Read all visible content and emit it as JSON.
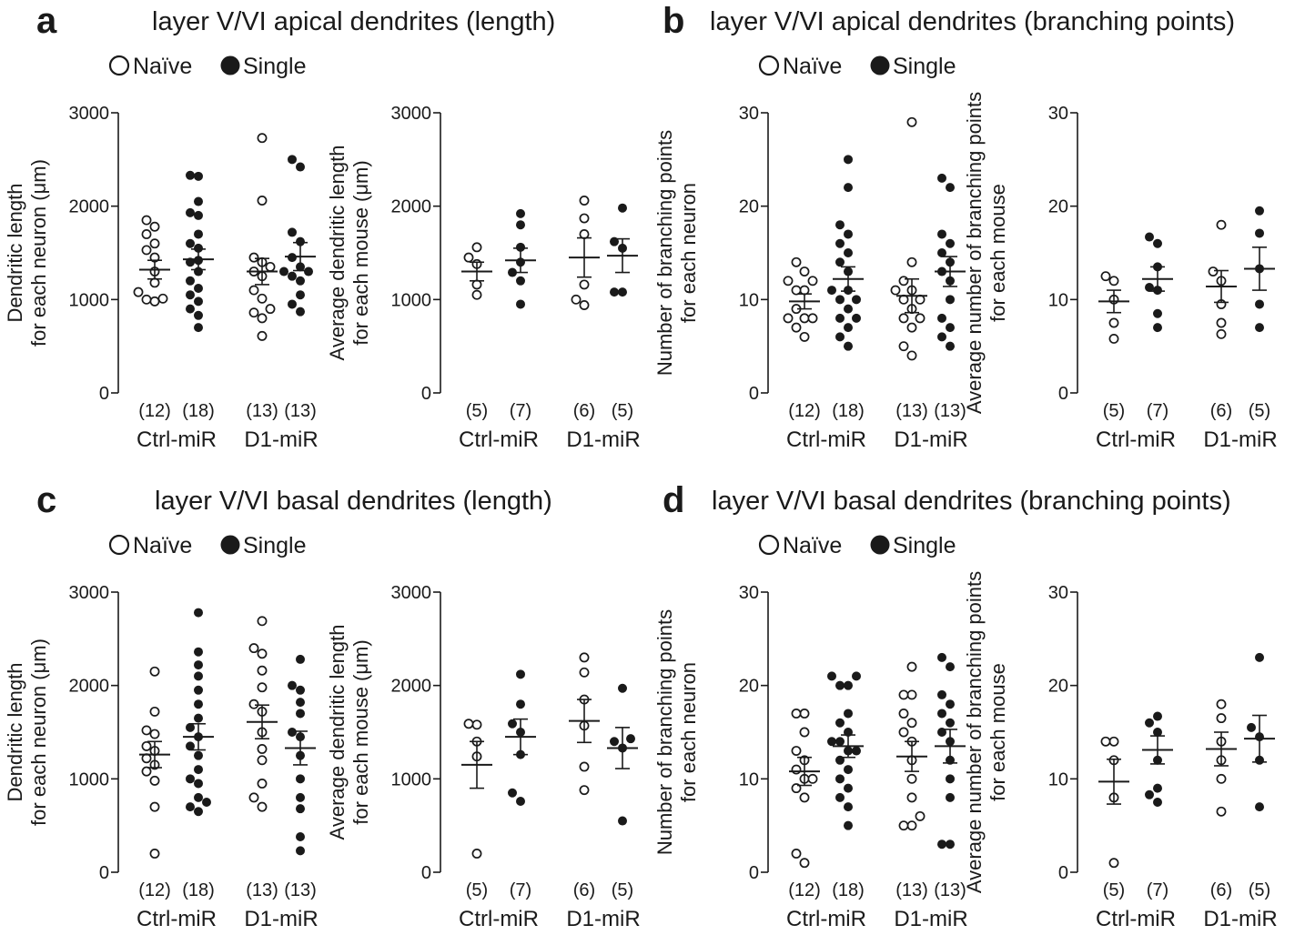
{
  "figure": {
    "legend": {
      "open_label": "Naïve",
      "filled_label": "Single"
    },
    "colors": {
      "ink": "#1a1a1a",
      "background": "#ffffff"
    }
  },
  "chart_data": [
    {
      "type": "scatter",
      "panel": "a",
      "title": "layer V/VI apical dendrites (length)",
      "xlabel": "",
      "ylabel": [
        "Dendritic length",
        "for each neuron (μm)"
      ],
      "ylim": [
        0,
        3000
      ],
      "yticks": [
        0,
        1000,
        2000,
        3000
      ],
      "groups": [
        "Ctrl-miR",
        "D1-miR"
      ],
      "series": [
        {
          "name": "Naïve",
          "group": "Ctrl-miR",
          "n": "(12)",
          "mean": 1320,
          "sem": 100,
          "values": [
            1850,
            1780,
            1700,
            1600,
            1530,
            1450,
            1300,
            1180,
            1080,
            1010,
            980,
            1000
          ]
        },
        {
          "name": "Single",
          "group": "Ctrl-miR",
          "n": "(18)",
          "mean": 1430,
          "sem": 110,
          "values": [
            2330,
            2320,
            2050,
            1930,
            1900,
            1700,
            1600,
            1550,
            1420,
            1400,
            1300,
            1200,
            1120,
            1050,
            980,
            900,
            830,
            700
          ]
        },
        {
          "name": "Naïve",
          "group": "D1-miR",
          "n": "(13)",
          "mean": 1300,
          "sem": 140,
          "values": [
            2730,
            2060,
            1450,
            1350,
            1300,
            1250,
            1100,
            1010,
            900,
            860,
            800,
            610,
            1400
          ]
        },
        {
          "name": "Single",
          "group": "D1-miR",
          "n": "(13)",
          "mean": 1460,
          "sem": 150,
          "values": [
            2500,
            2420,
            1720,
            1620,
            1450,
            1350,
            1300,
            1300,
            1200,
            1050,
            950,
            870,
            1250
          ]
        }
      ]
    },
    {
      "type": "scatter",
      "panel": "a",
      "title": "",
      "xlabel": "",
      "ylabel": [
        "Average dendritic length",
        "for each mouse (μm)"
      ],
      "ylim": [
        0,
        3000
      ],
      "yticks": [
        0,
        1000,
        2000,
        3000
      ],
      "groups": [
        "Ctrl-miR",
        "D1-miR"
      ],
      "series": [
        {
          "name": "Naïve",
          "group": "Ctrl-miR",
          "n": "(5)",
          "mean": 1300,
          "sem": 100,
          "values": [
            1560,
            1450,
            1380,
            1160,
            1050
          ]
        },
        {
          "name": "Single",
          "group": "Ctrl-miR",
          "n": "(7)",
          "mean": 1420,
          "sem": 130,
          "values": [
            1920,
            1800,
            1560,
            1400,
            1290,
            1200,
            950
          ]
        },
        {
          "name": "Naïve",
          "group": "D1-miR",
          "n": "(6)",
          "mean": 1450,
          "sem": 210,
          "values": [
            2060,
            1870,
            1700,
            1160,
            1000,
            940
          ]
        },
        {
          "name": "Single",
          "group": "D1-miR",
          "n": "(5)",
          "mean": 1470,
          "sem": 180,
          "values": [
            1980,
            1620,
            1550,
            1080,
            1080
          ]
        }
      ]
    },
    {
      "type": "scatter",
      "panel": "b",
      "title": "layer V/VI apical dendrites (branching points)",
      "xlabel": "",
      "ylabel": [
        "Number of branching points",
        "for each neuron"
      ],
      "ylim": [
        0,
        30
      ],
      "yticks": [
        0,
        10,
        20,
        30
      ],
      "groups": [
        "Ctrl-miR",
        "D1-miR"
      ],
      "series": [
        {
          "name": "Naïve",
          "group": "Ctrl-miR",
          "n": "(12)",
          "mean": 9.8,
          "sem": 0.8,
          "values": [
            14,
            13,
            12,
            12,
            11,
            11,
            9,
            8,
            8,
            8,
            7,
            6
          ]
        },
        {
          "name": "Single",
          "group": "Ctrl-miR",
          "n": "(18)",
          "mean": 12.2,
          "sem": 1.3,
          "values": [
            25,
            22,
            18,
            17,
            16,
            15,
            14,
            13,
            11,
            11,
            10,
            10,
            9,
            8,
            8,
            7,
            6,
            5
          ]
        },
        {
          "name": "Naïve",
          "group": "D1-miR",
          "n": "(13)",
          "mean": 10.4,
          "sem": 1.8,
          "values": [
            29,
            14,
            12,
            11,
            11,
            10,
            10,
            9,
            8,
            8,
            7,
            5,
            4
          ]
        },
        {
          "name": "Single",
          "group": "D1-miR",
          "n": "(13)",
          "mean": 13.0,
          "sem": 1.6,
          "values": [
            23,
            22,
            17,
            16,
            15,
            14,
            13,
            12,
            10,
            8,
            7,
            6,
            5
          ]
        }
      ]
    },
    {
      "type": "scatter",
      "panel": "b",
      "title": "",
      "xlabel": "",
      "ylabel": [
        "Average number of branching points",
        "for each mouse"
      ],
      "ylim": [
        0,
        30
      ],
      "yticks": [
        0,
        10,
        20,
        30
      ],
      "groups": [
        "Ctrl-miR",
        "D1-miR"
      ],
      "series": [
        {
          "name": "Naïve",
          "group": "Ctrl-miR",
          "n": "(5)",
          "mean": 9.8,
          "sem": 1.2,
          "values": [
            12.5,
            12,
            10,
            7.5,
            5.8
          ]
        },
        {
          "name": "Single",
          "group": "Ctrl-miR",
          "n": "(7)",
          "mean": 12.2,
          "sem": 1.3,
          "values": [
            16.7,
            16,
            13.5,
            11.3,
            11,
            8.5,
            7
          ]
        },
        {
          "name": "Naïve",
          "group": "D1-miR",
          "n": "(6)",
          "mean": 11.4,
          "sem": 1.7,
          "values": [
            18,
            13,
            12,
            9.5,
            7.5,
            6.3
          ]
        },
        {
          "name": "Single",
          "group": "D1-miR",
          "n": "(5)",
          "mean": 13.3,
          "sem": 2.3,
          "values": [
            19.5,
            17.1,
            13.3,
            9.5,
            7
          ]
        }
      ]
    },
    {
      "type": "scatter",
      "panel": "c",
      "title": "layer V/VI basal dendrites (length)",
      "xlabel": "",
      "ylabel": [
        "Dendritic length",
        "for each neuron (μm)"
      ],
      "ylim": [
        0,
        3000
      ],
      "yticks": [
        0,
        1000,
        2000,
        3000
      ],
      "groups": [
        "Ctrl-miR",
        "D1-miR"
      ],
      "series": [
        {
          "name": "Naïve",
          "group": "Ctrl-miR",
          "n": "(12)",
          "mean": 1260,
          "sem": 140,
          "values": [
            2150,
            1720,
            1520,
            1480,
            1350,
            1300,
            1220,
            1150,
            1080,
            980,
            700,
            200
          ]
        },
        {
          "name": "Single",
          "group": "Ctrl-miR",
          "n": "(18)",
          "mean": 1450,
          "sem": 140,
          "values": [
            2780,
            2360,
            2220,
            2100,
            1950,
            1800,
            1650,
            1550,
            1450,
            1350,
            1250,
            1100,
            1000,
            950,
            800,
            750,
            700,
            650
          ]
        },
        {
          "name": "Naïve",
          "group": "D1-miR",
          "n": "(13)",
          "mean": 1610,
          "sem": 180,
          "values": [
            2690,
            2400,
            2340,
            2160,
            1980,
            1800,
            1720,
            1500,
            1320,
            1200,
            950,
            800,
            700
          ]
        },
        {
          "name": "Single",
          "group": "D1-miR",
          "n": "(13)",
          "mean": 1330,
          "sem": 180,
          "values": [
            2280,
            2000,
            1950,
            1820,
            1700,
            1500,
            1450,
            1250,
            1000,
            800,
            680,
            380,
            230
          ]
        }
      ]
    },
    {
      "type": "scatter",
      "panel": "c",
      "title": "",
      "xlabel": "",
      "ylabel": [
        "Average dendritic length",
        "for each mouse (μm)"
      ],
      "ylim": [
        0,
        3000
      ],
      "yticks": [
        0,
        1000,
        2000,
        3000
      ],
      "groups": [
        "Ctrl-miR",
        "D1-miR"
      ],
      "series": [
        {
          "name": "Naïve",
          "group": "Ctrl-miR",
          "n": "(5)",
          "mean": 1150,
          "sem": 250,
          "values": [
            1590,
            1580,
            1400,
            1240,
            200
          ]
        },
        {
          "name": "Single",
          "group": "Ctrl-miR",
          "n": "(7)",
          "mean": 1450,
          "sem": 190,
          "values": [
            2120,
            1800,
            1590,
            1500,
            1260,
            850,
            760
          ]
        },
        {
          "name": "Naïve",
          "group": "D1-miR",
          "n": "(6)",
          "mean": 1620,
          "sem": 230,
          "values": [
            2300,
            2140,
            1850,
            1570,
            1130,
            880
          ]
        },
        {
          "name": "Single",
          "group": "D1-miR",
          "n": "(5)",
          "mean": 1330,
          "sem": 220,
          "values": [
            1970,
            1430,
            1400,
            1330,
            550
          ]
        }
      ]
    },
    {
      "type": "scatter",
      "panel": "d",
      "title": "layer V/VI basal dendrites (branching points)",
      "xlabel": "",
      "ylabel": [
        "Number of branching points",
        "for each neuron"
      ],
      "ylim": [
        0,
        30
      ],
      "yticks": [
        0,
        10,
        20,
        30
      ],
      "groups": [
        "Ctrl-miR",
        "D1-miR"
      ],
      "series": [
        {
          "name": "Naïve",
          "group": "Ctrl-miR",
          "n": "(12)",
          "mean": 10.8,
          "sem": 1.5,
          "values": [
            17,
            17,
            15,
            13,
            12,
            11,
            10,
            10,
            9,
            8,
            2,
            1
          ]
        },
        {
          "name": "Single",
          "group": "Ctrl-miR",
          "n": "(18)",
          "mean": 13.5,
          "sem": 1.2,
          "values": [
            21,
            21,
            20,
            20,
            17,
            16,
            15,
            14,
            14,
            13,
            13,
            12,
            11,
            10,
            9,
            8,
            7,
            5
          ]
        },
        {
          "name": "Naïve",
          "group": "D1-miR",
          "n": "(13)",
          "mean": 12.4,
          "sem": 1.6,
          "values": [
            22,
            19,
            19,
            17,
            16,
            15,
            14,
            12,
            10,
            8,
            6,
            5,
            5
          ]
        },
        {
          "name": "Single",
          "group": "D1-miR",
          "n": "(13)",
          "mean": 13.5,
          "sem": 1.8,
          "values": [
            23,
            22,
            19,
            18,
            17,
            16,
            15,
            14,
            12,
            10,
            8,
            3,
            3
          ]
        }
      ]
    },
    {
      "type": "scatter",
      "panel": "d",
      "title": "",
      "xlabel": "",
      "ylabel": [
        "Average number of branching points",
        "for each mouse"
      ],
      "ylim": [
        0,
        30
      ],
      "yticks": [
        0,
        10,
        20,
        30
      ],
      "groups": [
        "Ctrl-miR",
        "D1-miR"
      ],
      "series": [
        {
          "name": "Naïve",
          "group": "Ctrl-miR",
          "n": "(5)",
          "mean": 9.7,
          "sem": 2.4,
          "values": [
            14,
            14,
            12,
            8,
            1
          ]
        },
        {
          "name": "Single",
          "group": "Ctrl-miR",
          "n": "(7)",
          "mean": 13.1,
          "sem": 1.5,
          "values": [
            16.7,
            16,
            15,
            12,
            9,
            8.3,
            7.5
          ]
        },
        {
          "name": "Naïve",
          "group": "D1-miR",
          "n": "(6)",
          "mean": 13.2,
          "sem": 1.8,
          "values": [
            18,
            16.5,
            14,
            12,
            10,
            6.5
          ]
        },
        {
          "name": "Single",
          "group": "D1-miR",
          "n": "(5)",
          "mean": 14.3,
          "sem": 2.5,
          "values": [
            23,
            15.5,
            14.5,
            12,
            7
          ]
        }
      ]
    }
  ]
}
